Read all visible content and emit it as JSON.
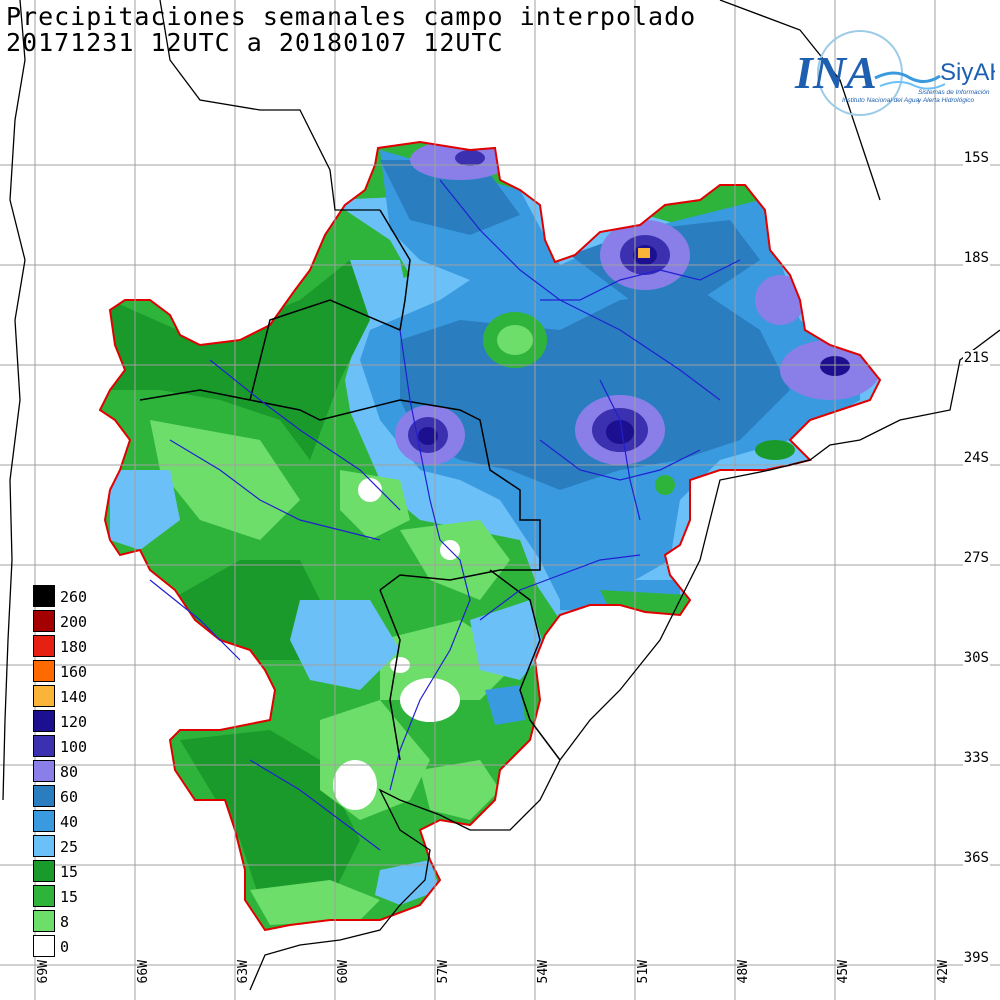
{
  "title": {
    "line1": "Precipitaciones semanales campo interpolado",
    "line2": "20171231 12UTC a 20180107 12UTC"
  },
  "logo": {
    "brand": "INA",
    "system": "SiyAH",
    "org_name": "Instituto Nacional del Agua",
    "system_desc_1": "Sistemas de Información",
    "system_desc_2": "y Alerta Hidrológico"
  },
  "legend": [
    {
      "label": "260",
      "color": "#000000"
    },
    {
      "label": "200",
      "color": "#a50000"
    },
    {
      "label": "180",
      "color": "#e62114"
    },
    {
      "label": "160",
      "color": "#ff6a00"
    },
    {
      "label": "140",
      "color": "#fbb43a"
    },
    {
      "label": "120",
      "color": "#1c1090"
    },
    {
      "label": "100",
      "color": "#3a30b0"
    },
    {
      "label": "80",
      "color": "#8a7ee8"
    },
    {
      "label": "60",
      "color": "#2a7ec0"
    },
    {
      "label": "40",
      "color": "#3a9ae0"
    },
    {
      "label": "25",
      "color": "#6cc0f8"
    },
    {
      "label": "15",
      "color": "#1a9a2a"
    },
    {
      "label": "15",
      "color": "#2eb43a"
    },
    {
      "label": "8",
      "color": "#6ede6a"
    },
    {
      "label": "0",
      "color": "#ffffff"
    }
  ],
  "lat_labels": [
    "15S",
    "18S",
    "21S",
    "24S",
    "27S",
    "30S",
    "33S",
    "36S",
    "39S"
  ],
  "lon_labels": [
    "69W",
    "66W",
    "63W",
    "60W",
    "57W",
    "54W",
    "51W",
    "48W",
    "45W",
    "42W"
  ],
  "colors": {
    "grid": "#a0a0a0",
    "coast": "#000000",
    "border": "#000000",
    "rivers": "#2020d0",
    "basin_outline": "#e00000"
  }
}
